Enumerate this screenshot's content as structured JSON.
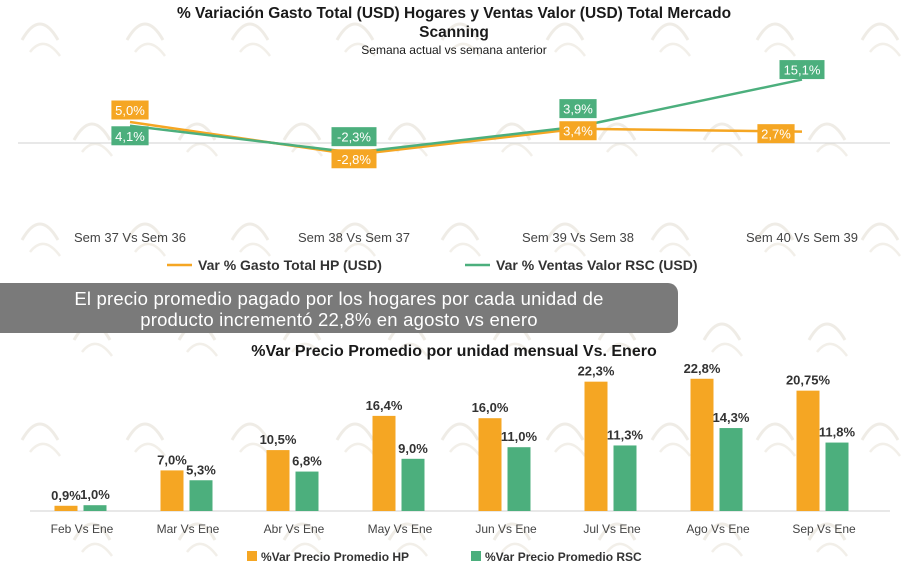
{
  "chart_data": [
    {
      "type": "line",
      "title": "% Variación Gasto Total (USD) Hogares y Ventas Valor (USD) Total Mercado Scanning",
      "title_line1": "% Variación Gasto Total (USD) Hogares y Ventas Valor (USD) Total Mercado",
      "title_line2": "Scanning",
      "subtitle": "Semana actual vs semana anterior",
      "categories": [
        "Sem 37 Vs Sem 36",
        "Sem 38 Vs Sem 37",
        "Sem 39 Vs Sem 38",
        "Sem 40 Vs Sem 39"
      ],
      "series": [
        {
          "name": "Var % Gasto Total HP (USD)",
          "color": "#f5a623",
          "values": [
            5.0,
            -2.8,
            3.4,
            2.7
          ],
          "labels": [
            "5,0%",
            "-2,8%",
            "3,4%",
            "2,7%"
          ]
        },
        {
          "name": "Var % Ventas Valor RSC (USD)",
          "color": "#4caf7d",
          "values": [
            4.1,
            -2.3,
            3.9,
            15.1
          ],
          "labels": [
            "4,1%",
            "-2,3%",
            "3,9%",
            "15,1%"
          ]
        }
      ],
      "ylim": [
        -10,
        20
      ],
      "grid": false,
      "legend": "bottom"
    },
    {
      "type": "bar",
      "title": "%Var Precio Promedio por unidad mensual Vs. Enero",
      "categories": [
        "Feb Vs Ene",
        "Mar Vs Ene",
        "Abr Vs Ene",
        "May Vs Ene",
        "Jun Vs Ene",
        "Jul Vs Ene",
        "Ago Vs Ene",
        "Sep Vs Ene"
      ],
      "series": [
        {
          "name": "%Var Precio Promedio HP",
          "color": "#f5a623",
          "values": [
            0.9,
            7.0,
            10.5,
            16.4,
            16.0,
            22.3,
            22.8,
            20.75
          ],
          "labels": [
            "0,9%",
            "7,0%",
            "10,5%",
            "16,4%",
            "16,0%",
            "22,3%",
            "22,8%",
            "20,75%"
          ]
        },
        {
          "name": "%Var Precio Promedio RSC",
          "color": "#4caf7d",
          "values": [
            1.0,
            5.3,
            6.8,
            9.0,
            11.0,
            11.3,
            14.3,
            11.8
          ],
          "labels": [
            "1,0%",
            "5,3%",
            "6,8%",
            "9,0%",
            "11,0%",
            "11,3%",
            "14,3%",
            "11,8%"
          ]
        }
      ],
      "ylim": [
        0,
        25
      ],
      "grid": false,
      "legend": "bottom"
    }
  ],
  "banner": {
    "line1": "El precio promedio pagado por los hogares por cada unidad de",
    "line2": "producto incrementó 22,8% en agosto vs enero"
  }
}
